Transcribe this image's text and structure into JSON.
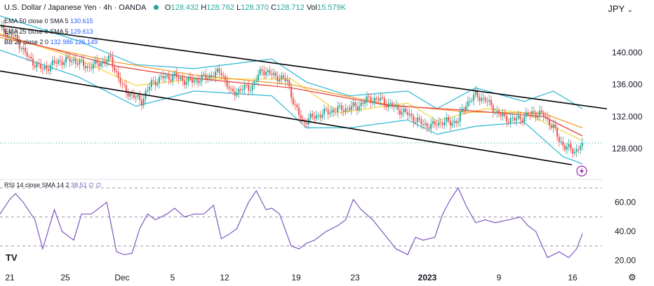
{
  "header": {
    "symbol": "U.S. Dollar / Japanese Yen · 4h · OANDA",
    "o_label": "O",
    "o_value": "128.432",
    "h_label": "H",
    "h_value": "128.762",
    "l_label": "L",
    "l_value": "128.370",
    "c_label": "C",
    "c_value": "128.712",
    "vol_label": "Vol",
    "vol_value": "15.579K",
    "currency": "JPY"
  },
  "indicators": {
    "ema50": {
      "label": "EMA 50 close 0 SMA 5",
      "value": "130.615",
      "color": "#f7931a"
    },
    "ema25": {
      "label": "EMA 25 close 0 SMA 5",
      "value": "129.613",
      "color": "#e53935"
    },
    "bb": {
      "label": "BB 20 close 2 0",
      "value1": "132.986",
      "value2": "126.149",
      "basis_color": "#f5d142",
      "band_color": "#2bb7d5"
    },
    "rsi": {
      "label": "RSI 14 close SMA 14 2",
      "value1": "38.51",
      "value2": "∅",
      "value3": "∅",
      "color": "#7e57c2"
    }
  },
  "colors": {
    "up": "#26a69a",
    "down": "#ef5350",
    "channel": "#000000",
    "last_price_line": "#26a69a"
  },
  "chart_data": [
    {
      "type": "candlestick",
      "title": "U.S. Dollar / Japanese Yen · 4h · OANDA",
      "y_ticks": [
        "140.000",
        "136.000",
        "132.000",
        "128.000"
      ],
      "ylim": [
        124.5,
        145.0
      ],
      "x_ticks": [
        "21",
        "25",
        "Dec",
        "5",
        "12",
        "19",
        "23",
        "2023",
        "9",
        "16"
      ],
      "ohlc_close_path": [
        [
          0,
          143.1
        ],
        [
          8,
          141.8
        ],
        [
          15,
          139.2
        ],
        [
          22,
          137.9
        ],
        [
          30,
          138.9
        ],
        [
          38,
          139.1
        ],
        [
          45,
          138.2
        ],
        [
          50,
          138.6
        ],
        [
          57,
          139.2
        ],
        [
          63,
          135.7
        ],
        [
          68,
          134.6
        ],
        [
          73,
          134.0
        ],
        [
          78,
          136.2
        ],
        [
          84,
          136.9
        ],
        [
          90,
          137.0
        ],
        [
          96,
          136.4
        ],
        [
          102,
          136.6
        ],
        [
          108,
          137.1
        ],
        [
          114,
          137.6
        ],
        [
          119,
          134.9
        ],
        [
          124,
          135.4
        ],
        [
          130,
          135.8
        ],
        [
          135,
          137.9
        ],
        [
          140,
          137.2
        ],
        [
          144,
          136.9
        ],
        [
          148,
          136.4
        ],
        [
          152,
          133.2
        ],
        [
          156,
          131.3
        ],
        [
          160,
          131.8
        ],
        [
          166,
          132.4
        ],
        [
          172,
          132.8
        ],
        [
          178,
          133.0
        ],
        [
          184,
          133.3
        ],
        [
          190,
          134.2
        ],
        [
          196,
          134.1
        ],
        [
          202,
          133.3
        ],
        [
          208,
          132.6
        ],
        [
          213,
          131.8
        ],
        [
          218,
          131.0
        ],
        [
          223,
          130.9
        ],
        [
          228,
          131.4
        ],
        [
          232,
          131.2
        ],
        [
          236,
          131.6
        ],
        [
          240,
          133.6
        ],
        [
          245,
          134.7
        ],
        [
          250,
          134.1
        ],
        [
          256,
          132.5
        ],
        [
          260,
          131.8
        ],
        [
          265,
          131.6
        ],
        [
          270,
          132.0
        ],
        [
          275,
          132.5
        ],
        [
          280,
          132.2
        ],
        [
          285,
          130.7
        ],
        [
          288,
          129.0
        ],
        [
          292,
          128.1
        ],
        [
          296,
          127.6
        ],
        [
          298,
          128.2
        ],
        [
          300,
          128.71
        ]
      ],
      "ema50_path": [
        [
          0,
          141.9
        ],
        [
          60,
          138.8
        ],
        [
          100,
          137.2
        ],
        [
          150,
          136.0
        ],
        [
          200,
          133.5
        ],
        [
          240,
          132.6
        ],
        [
          280,
          132.4
        ],
        [
          300,
          130.6
        ]
      ],
      "ema25_path": [
        [
          0,
          142.2
        ],
        [
          60,
          138.3
        ],
        [
          100,
          136.8
        ],
        [
          150,
          135.6
        ],
        [
          200,
          133.4
        ],
        [
          240,
          132.8
        ],
        [
          280,
          132.0
        ],
        [
          300,
          129.6
        ]
      ],
      "bb_basis_path": [
        [
          0,
          142.4
        ],
        [
          40,
          139.2
        ],
        [
          70,
          135.9
        ],
        [
          100,
          136.7
        ],
        [
          150,
          136.7
        ],
        [
          175,
          132.5
        ],
        [
          210,
          133.7
        ],
        [
          225,
          131.5
        ],
        [
          250,
          133.0
        ],
        [
          270,
          132.5
        ],
        [
          300,
          129.0
        ]
      ],
      "bb_upper_path": [
        [
          0,
          144.6
        ],
        [
          40,
          141.5
        ],
        [
          70,
          138.5
        ],
        [
          100,
          138.0
        ],
        [
          140,
          139.2
        ],
        [
          158,
          136.3
        ],
        [
          180,
          134.6
        ],
        [
          210,
          135.2
        ],
        [
          225,
          133.0
        ],
        [
          245,
          135.6
        ],
        [
          270,
          133.9
        ],
        [
          285,
          135.2
        ],
        [
          300,
          133.0
        ]
      ],
      "bb_lower_path": [
        [
          0,
          140.3
        ],
        [
          40,
          137.0
        ],
        [
          70,
          133.3
        ],
        [
          100,
          135.2
        ],
        [
          140,
          134.6
        ],
        [
          158,
          130.6
        ],
        [
          180,
          130.6
        ],
        [
          210,
          131.6
        ],
        [
          225,
          129.8
        ],
        [
          245,
          130.8
        ],
        [
          270,
          131.3
        ],
        [
          290,
          127.0
        ],
        [
          300,
          126.1
        ]
      ],
      "channel_upper": [
        [
          0,
          143.4
        ],
        [
          300,
          132.8
        ]
      ],
      "channel_lower": [
        [
          0,
          137.7
        ],
        [
          300,
          125.9
        ]
      ],
      "last_price": 128.71
    },
    {
      "type": "line",
      "title": "RSI 14 close SMA 14 2",
      "y_ticks": [
        "60.00",
        "40.00",
        "20.00"
      ],
      "ylim": [
        15,
        70
      ],
      "levels": [
        70,
        50,
        30
      ],
      "rsi_path": [
        [
          0,
          52
        ],
        [
          5,
          62
        ],
        [
          8,
          66
        ],
        [
          12,
          60
        ],
        [
          18,
          48
        ],
        [
          22,
          28
        ],
        [
          28,
          55
        ],
        [
          32,
          40
        ],
        [
          38,
          34
        ],
        [
          42,
          52
        ],
        [
          47,
          52
        ],
        [
          50,
          55
        ],
        [
          55,
          60
        ],
        [
          60,
          26
        ],
        [
          64,
          24
        ],
        [
          68,
          25
        ],
        [
          72,
          42
        ],
        [
          76,
          52
        ],
        [
          80,
          48
        ],
        [
          86,
          52
        ],
        [
          90,
          56
        ],
        [
          95,
          50
        ],
        [
          100,
          52
        ],
        [
          105,
          52
        ],
        [
          110,
          58
        ],
        [
          114,
          35
        ],
        [
          118,
          38
        ],
        [
          122,
          42
        ],
        [
          128,
          60
        ],
        [
          132,
          68
        ],
        [
          137,
          55
        ],
        [
          140,
          56
        ],
        [
          144,
          52
        ],
        [
          150,
          30
        ],
        [
          154,
          28
        ],
        [
          158,
          32
        ],
        [
          162,
          34
        ],
        [
          168,
          40
        ],
        [
          174,
          44
        ],
        [
          178,
          48
        ],
        [
          182,
          62
        ],
        [
          186,
          55
        ],
        [
          192,
          48
        ],
        [
          198,
          38
        ],
        [
          204,
          28
        ],
        [
          210,
          24
        ],
        [
          214,
          36
        ],
        [
          218,
          34
        ],
        [
          224,
          36
        ],
        [
          228,
          52
        ],
        [
          232,
          62
        ],
        [
          236,
          70
        ],
        [
          240,
          58
        ],
        [
          245,
          46
        ],
        [
          250,
          48
        ],
        [
          255,
          46
        ],
        [
          262,
          48
        ],
        [
          268,
          50
        ],
        [
          272,
          44
        ],
        [
          276,
          40
        ],
        [
          282,
          22
        ],
        [
          288,
          26
        ],
        [
          293,
          22
        ],
        [
          297,
          28
        ],
        [
          300,
          38.5
        ]
      ]
    }
  ]
}
